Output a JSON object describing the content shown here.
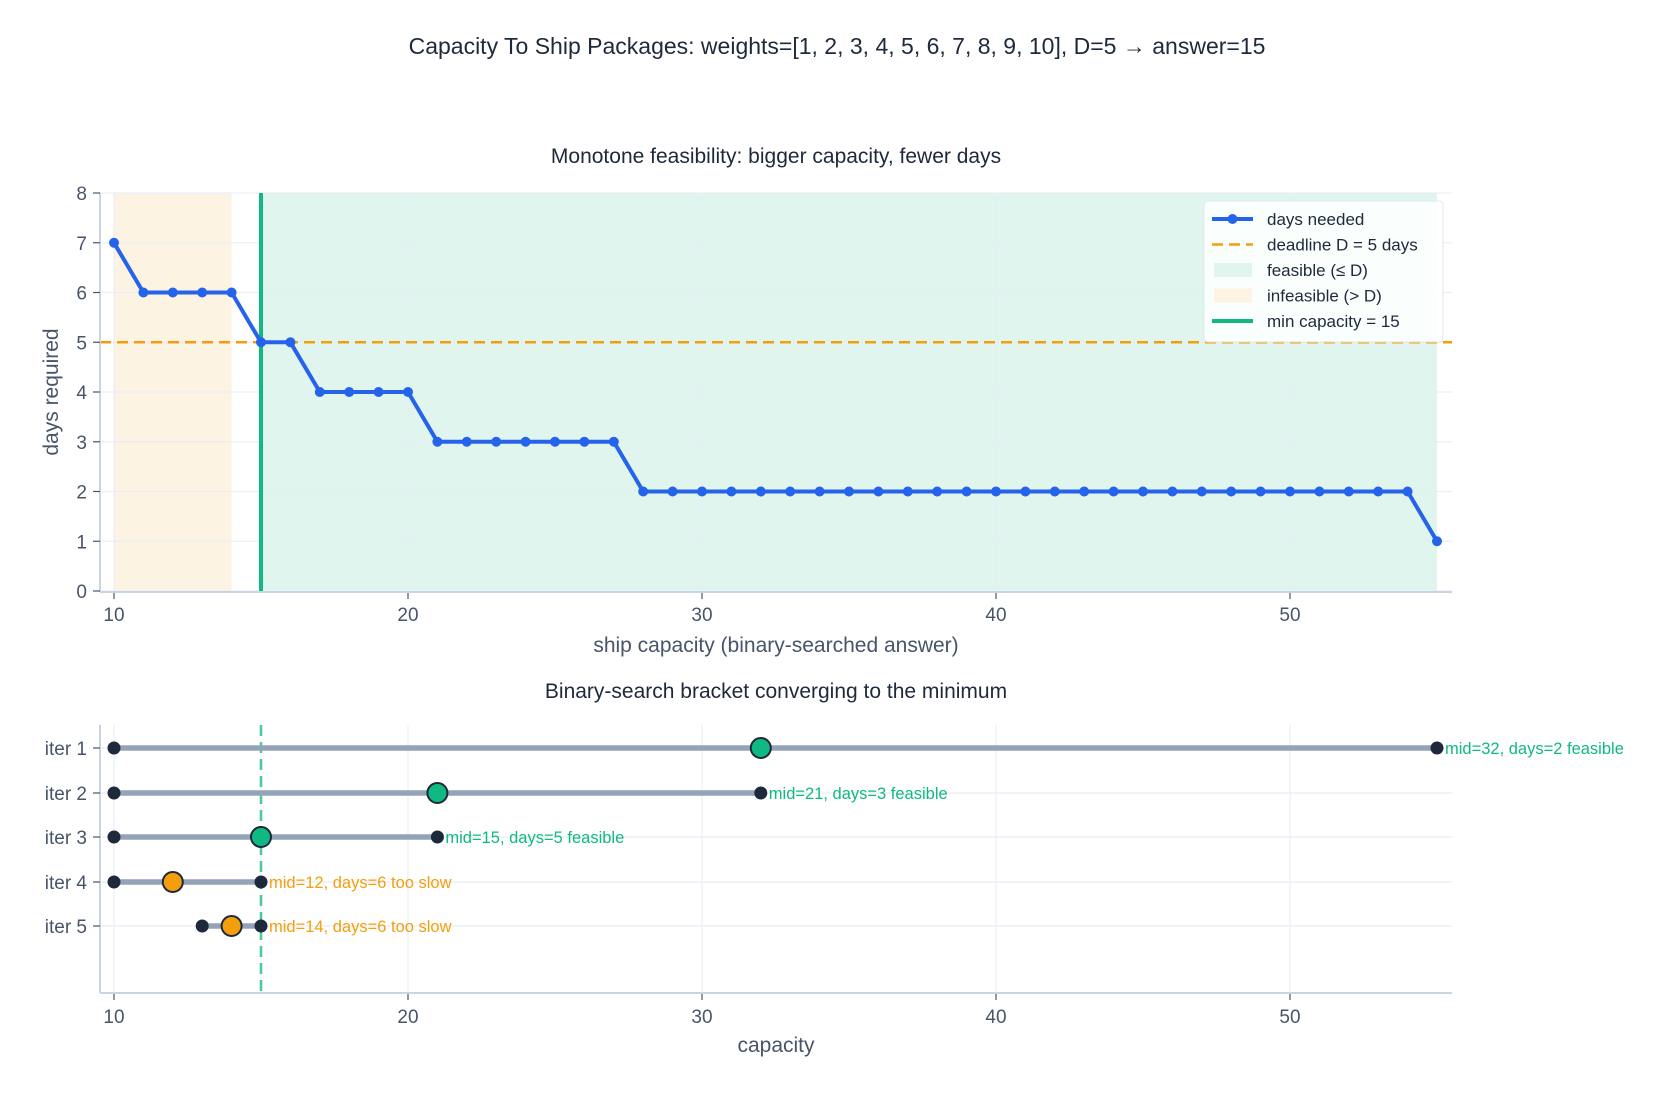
{
  "figure": {
    "suptitle": "Capacity To Ship Packages: weights=[1, 2, 3, 4, 5, 6, 7, 8, 9, 10], D=5  →  answer=15"
  },
  "colors": {
    "days_line": "#2563eb",
    "deadline": "#f59e0b",
    "feasible_fill": "#dff5ee",
    "infeasible_fill": "#fdf3e3",
    "min_capacity": "#10b981",
    "bracket": "#94a3b8",
    "endpoint": "#1e293b",
    "mid_feasible": "#10b981",
    "mid_infeasible": "#f59e0b",
    "axis": "#cbd5e1",
    "grid": "#e8eef5",
    "text": "#1e293b",
    "tick_text": "#475569"
  },
  "chart_data": [
    {
      "type": "line",
      "title": "Monotone feasibility: bigger capacity, fewer days",
      "xlabel": "ship capacity (binary-searched answer)",
      "ylabel": "days required",
      "xlim": [
        9.5,
        56.5
      ],
      "ylim": [
        0,
        8
      ],
      "xticks": [
        10,
        20,
        30,
        40,
        50
      ],
      "yticks": [
        0,
        1,
        2,
        3,
        4,
        5,
        6,
        7,
        8
      ],
      "grid": true,
      "legend_position": "upper right",
      "x": [
        10,
        11,
        12,
        13,
        14,
        15,
        16,
        17,
        18,
        19,
        20,
        21,
        22,
        23,
        24,
        25,
        26,
        27,
        28,
        29,
        30,
        31,
        32,
        33,
        34,
        35,
        36,
        37,
        38,
        39,
        40,
        41,
        42,
        43,
        44,
        45,
        46,
        47,
        48,
        49,
        50,
        51,
        52,
        53,
        54,
        55
      ],
      "series": [
        {
          "name": "days needed",
          "values": [
            7,
            6,
            6,
            6,
            6,
            5,
            5,
            4,
            4,
            4,
            4,
            3,
            3,
            3,
            3,
            3,
            3,
            3,
            2,
            2,
            2,
            2,
            2,
            2,
            2,
            2,
            2,
            2,
            2,
            2,
            2,
            2,
            2,
            2,
            2,
            2,
            2,
            2,
            2,
            2,
            2,
            2,
            2,
            2,
            2,
            1
          ]
        }
      ],
      "hlines": [
        {
          "name": "deadline D = 5 days",
          "y": 5,
          "style": "dashed"
        }
      ],
      "vlines": [
        {
          "name": "min capacity = 15",
          "x": 15
        }
      ],
      "spans": [
        {
          "name": "feasible (≤ D)",
          "x0": 15,
          "x1": 55
        },
        {
          "name": "infeasible (> D)",
          "x0": 10,
          "x1": 14
        }
      ],
      "legend": [
        "days needed",
        "deadline D = 5 days",
        "feasible (≤ D)",
        "infeasible (> D)",
        "min capacity = 15"
      ]
    },
    {
      "type": "scatter",
      "title": "Binary-search bracket converging to the minimum",
      "xlabel": "capacity",
      "ylabel": "",
      "xlim": [
        9.5,
        56.5
      ],
      "xticks": [
        10,
        20,
        30,
        40,
        50
      ],
      "categories": [
        "iter 1",
        "iter 2",
        "iter 3",
        "iter 4",
        "iter 5"
      ],
      "vline": {
        "x": 15,
        "style": "dashed"
      },
      "iterations": [
        {
          "label": "iter 1",
          "lo": 10,
          "hi": 55,
          "mid": 32,
          "days": 2,
          "feasible": true,
          "annotation": "mid=32, days=2 feasible"
        },
        {
          "label": "iter 2",
          "lo": 10,
          "hi": 32,
          "mid": 21,
          "days": 3,
          "feasible": true,
          "annotation": "mid=21, days=3 feasible"
        },
        {
          "label": "iter 3",
          "lo": 10,
          "hi": 21,
          "mid": 15,
          "days": 5,
          "feasible": true,
          "annotation": "mid=15, days=5 feasible"
        },
        {
          "label": "iter 4",
          "lo": 10,
          "hi": 15,
          "mid": 12,
          "days": 6,
          "feasible": false,
          "annotation": "mid=12, days=6 too slow"
        },
        {
          "label": "iter 5",
          "lo": 13,
          "hi": 15,
          "mid": 14,
          "days": 6,
          "feasible": false,
          "annotation": "mid=14, days=6 too slow"
        }
      ]
    }
  ]
}
